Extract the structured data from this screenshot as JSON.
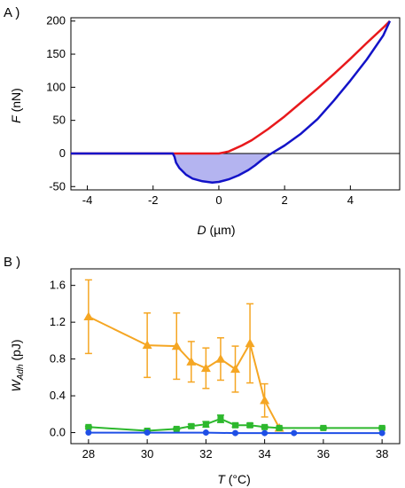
{
  "chart_data": [
    {
      "panel_label": "A )",
      "type": "line",
      "xlabel": {
        "symbol": "D",
        "unit": " (µm)"
      },
      "ylabel": {
        "symbol": "F",
        "unit": " (nN)"
      },
      "xlim": [
        -4.5,
        5.5
      ],
      "ylim": [
        -55,
        205
      ],
      "x_ticks": [
        -4,
        -2,
        0,
        2,
        4
      ],
      "y_ticks": [
        -50,
        0,
        50,
        100,
        150,
        200
      ],
      "grid": false,
      "colors": {
        "approach": "#e8191c",
        "retract": "#1313c8",
        "adhesion_fill": "#b4b4f0"
      },
      "series": [
        {
          "color": "#e8191c",
          "x": [
            -4.5,
            -1.0,
            -0.3,
            0.0,
            0.3,
            0.7,
            1.0,
            1.5,
            2.0,
            2.5,
            3.0,
            3.5,
            4.0,
            4.5,
            5.0,
            5.2
          ],
          "y": [
            0,
            0,
            0,
            0,
            3,
            12,
            20,
            37,
            56,
            77,
            98,
            120,
            143,
            167,
            190,
            200
          ]
        },
        {
          "color": "#1313c8",
          "x": [
            -4.5,
            -1.4,
            -1.35,
            -1.3,
            -1.2,
            -1.0,
            -0.8,
            -0.5,
            -0.2,
            0.0,
            0.3,
            0.6,
            0.9,
            1.1,
            1.3,
            1.5,
            1.7,
            2.0,
            2.5,
            3.0,
            3.5,
            4.0,
            4.5,
            5.0,
            5.2
          ],
          "y": [
            0,
            0,
            -5,
            -14,
            -22,
            -32,
            -38,
            -42,
            -44,
            -43,
            -39,
            -33,
            -25,
            -18,
            -10,
            -3,
            3,
            12,
            30,
            52,
            80,
            110,
            142,
            178,
            200
          ]
        }
      ],
      "adhesion_area": {
        "x_range": [
          -1.4,
          1.6
        ],
        "color": "#b4b4f0"
      }
    },
    {
      "panel_label": "B )",
      "type": "line",
      "xlabel": {
        "symbol": "T",
        "unit": " (°C)"
      },
      "ylabel": {
        "symbol": "W",
        "subscript": "Adh",
        "unit": " (pJ)"
      },
      "xlim": [
        27.4,
        38.6
      ],
      "ylim": [
        -0.12,
        1.78
      ],
      "x_ticks": [
        28,
        30,
        32,
        34,
        36,
        38
      ],
      "y_ticks": [
        0.0,
        0.4,
        0.8,
        1.2,
        1.6
      ],
      "y_tick_labels": [
        "0.0",
        "0.4",
        "0.8",
        "1.2",
        "1.6"
      ],
      "grid": false,
      "series": [
        {
          "marker": "triangle",
          "color": "#f5a623",
          "x": [
            28,
            30,
            31,
            31.5,
            32,
            32.5,
            33,
            33.5,
            34,
            34.5
          ],
          "y": [
            1.26,
            0.95,
            0.94,
            0.77,
            0.7,
            0.8,
            0.69,
            0.97,
            0.35,
            0.05
          ],
          "err": [
            0.4,
            0.35,
            0.36,
            0.22,
            0.22,
            0.23,
            0.25,
            0.43,
            0.18,
            0.0
          ]
        },
        {
          "marker": "square",
          "color": "#2db82d",
          "x": [
            28,
            30,
            31,
            31.5,
            32,
            32.5,
            33,
            33.5,
            34,
            34.5,
            36,
            38
          ],
          "y": [
            0.06,
            0.02,
            0.04,
            0.07,
            0.09,
            0.15,
            0.08,
            0.08,
            0.06,
            0.05,
            0.05,
            0.05
          ],
          "err": [
            0.01,
            0.01,
            0.01,
            0.02,
            0.03,
            0.04,
            0.02,
            0.02,
            0.01,
            0.01,
            0.01,
            0.01
          ]
        },
        {
          "marker": "circle",
          "color": "#1f4fe6",
          "x": [
            28,
            30,
            32,
            33,
            34,
            35,
            38
          ],
          "y": [
            0.0,
            0.0,
            0.0,
            -0.005,
            -0.005,
            -0.005,
            -0.005
          ],
          "err": [
            0,
            0,
            0,
            0,
            0,
            0,
            0
          ]
        }
      ]
    }
  ]
}
